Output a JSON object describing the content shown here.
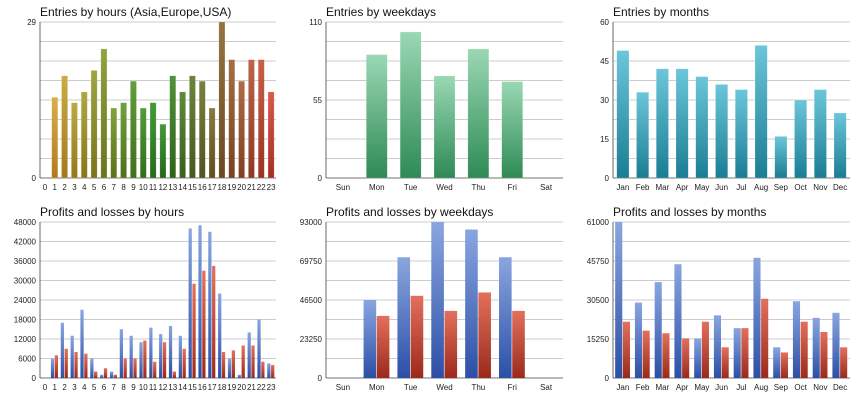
{
  "chart_data": [
    {
      "type": "bar",
      "title": "Entries by hours (Asia,Europe,USA)",
      "categories": [
        "0",
        "1",
        "2",
        "3",
        "4",
        "5",
        "6",
        "7",
        "8",
        "9",
        "10",
        "11",
        "12",
        "13",
        "14",
        "15",
        "16",
        "17",
        "18",
        "19",
        "20",
        "21",
        "22",
        "23"
      ],
      "series": [
        {
          "name": "Entries",
          "values": [
            0,
            15,
            19,
            14,
            16,
            20,
            24,
            13,
            14,
            18,
            13,
            14,
            10,
            19,
            16,
            19,
            18,
            13,
            29,
            22,
            18,
            22,
            22,
            16
          ]
        }
      ],
      "ylim": [
        0,
        29
      ],
      "yticks": [
        0,
        29
      ],
      "xlabel": "",
      "ylabel": "",
      "grid": true,
      "colors": {
        "top_start": "#e8b04a",
        "top_mid": "#3c9a36",
        "top_end": "#d85a4a",
        "bottom_start": "#c07c18",
        "bottom_mid": "#1f6b1c",
        "bottom_end": "#a52f24"
      }
    },
    {
      "type": "bar",
      "title": "Entries by weekdays",
      "categories": [
        "Sun",
        "Mon",
        "Tue",
        "Wed",
        "Thu",
        "Fri",
        "Sat"
      ],
      "series": [
        {
          "name": "Entries",
          "values": [
            0,
            87,
            103,
            72,
            91,
            68,
            0
          ]
        }
      ],
      "ylim": [
        0,
        110
      ],
      "yticks": [
        0,
        55,
        110
      ],
      "xlabel": "",
      "ylabel": "",
      "grid": true,
      "colors": {
        "top": "#9ad8b4",
        "bottom": "#2e8a55"
      }
    },
    {
      "type": "bar",
      "title": "Entries by months",
      "categories": [
        "Jan",
        "Feb",
        "Mar",
        "Apr",
        "May",
        "Jun",
        "Jul",
        "Aug",
        "Sep",
        "Oct",
        "Nov",
        "Dec"
      ],
      "series": [
        {
          "name": "Entries",
          "values": [
            49,
            33,
            42,
            42,
            39,
            36,
            34,
            51,
            16,
            30,
            34,
            25
          ]
        }
      ],
      "ylim": [
        0,
        60
      ],
      "yticks": [
        0,
        15,
        30,
        45,
        60
      ],
      "xlabel": "",
      "ylabel": "",
      "grid": true,
      "colors": {
        "top": "#6cc6da",
        "bottom": "#1a7d93"
      }
    },
    {
      "type": "bar",
      "title": "Profits and losses by hours",
      "categories": [
        "0",
        "1",
        "2",
        "3",
        "4",
        "5",
        "6",
        "7",
        "8",
        "9",
        "10",
        "11",
        "12",
        "13",
        "14",
        "15",
        "16",
        "17",
        "18",
        "19",
        "20",
        "21",
        "22",
        "23"
      ],
      "series": [
        {
          "name": "Profits",
          "values": [
            0,
            6000,
            17000,
            13000,
            21000,
            6000,
            1000,
            2000,
            15000,
            13000,
            11000,
            15500,
            13500,
            16000,
            13000,
            46000,
            47000,
            45000,
            26000,
            6000,
            1000,
            14000,
            18000,
            4500
          ]
        },
        {
          "name": "Losses",
          "values": [
            0,
            7000,
            9000,
            8000,
            7500,
            2000,
            3000,
            1000,
            6000,
            6000,
            11500,
            5000,
            11000,
            2000,
            9000,
            29000,
            33000,
            34500,
            8000,
            8500,
            10000,
            10000,
            5000,
            4000
          ]
        }
      ],
      "ylim": [
        0,
        48000
      ],
      "yticks": [
        0,
        6000,
        12000,
        18000,
        24000,
        30000,
        36000,
        42000,
        48000
      ],
      "xlabel": "",
      "ylabel": "",
      "grid": true,
      "colors": {
        "profit_top": "#8aa6e0",
        "profit_bottom": "#2c4fa6",
        "loss_top": "#e2705c",
        "loss_bottom": "#9c2a1c"
      }
    },
    {
      "type": "bar",
      "title": "Profits and losses by weekdays",
      "categories": [
        "Sun",
        "Mon",
        "Tue",
        "Wed",
        "Thu",
        "Fri",
        "Sat"
      ],
      "series": [
        {
          "name": "Profits",
          "values": [
            0,
            46500,
            72000,
            93000,
            88500,
            72000,
            0
          ]
        },
        {
          "name": "Losses",
          "values": [
            0,
            37000,
            49000,
            40000,
            51000,
            40000,
            0
          ]
        }
      ],
      "ylim": [
        0,
        93000
      ],
      "yticks": [
        0,
        23250,
        46500,
        69750,
        93000
      ],
      "xlabel": "",
      "ylabel": "",
      "grid": true,
      "colors": {
        "profit_top": "#8aa6e0",
        "profit_bottom": "#2c4fa6",
        "loss_top": "#e2705c",
        "loss_bottom": "#9c2a1c"
      }
    },
    {
      "type": "bar",
      "title": "Profits and losses by months",
      "categories": [
        "Jan",
        "Feb",
        "Mar",
        "Apr",
        "May",
        "Jun",
        "Jul",
        "Aug",
        "Sep",
        "Oct",
        "Nov",
        "Dec"
      ],
      "series": [
        {
          "name": "Profits",
          "values": [
            61000,
            29500,
            37500,
            44500,
            15500,
            24500,
            19500,
            47000,
            12000,
            30000,
            23500,
            25500
          ]
        },
        {
          "name": "Losses",
          "values": [
            22000,
            18500,
            17500,
            15500,
            22000,
            12000,
            19500,
            31000,
            10000,
            22000,
            18000,
            12000
          ]
        }
      ],
      "ylim": [
        0,
        61000
      ],
      "yticks": [
        0,
        15250,
        30500,
        45750,
        61000
      ],
      "xlabel": "",
      "ylabel": "",
      "grid": true,
      "colors": {
        "profit_top": "#8aa6e0",
        "profit_bottom": "#2c4fa6",
        "loss_top": "#e2705c",
        "loss_bottom": "#9c2a1c"
      }
    }
  ]
}
